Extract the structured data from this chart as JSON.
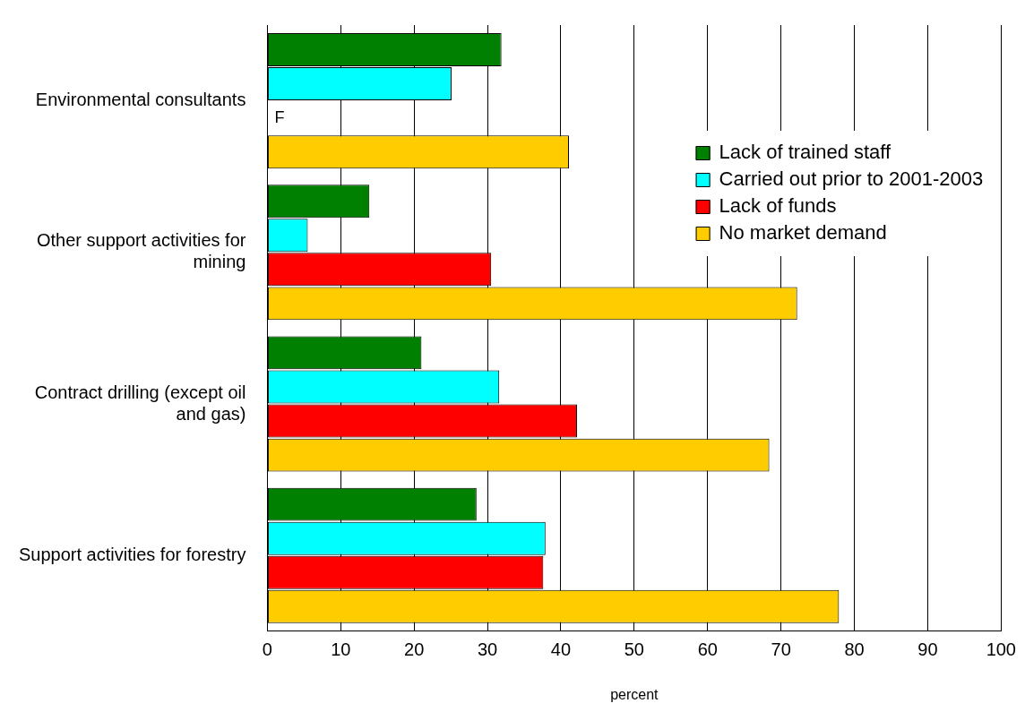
{
  "chart_data": {
    "type": "bar",
    "orientation": "horizontal",
    "xlabel": "percent",
    "categories": [
      "Environmental consultants",
      "Other support activities for mining",
      "Contract drilling (except oil and gas)",
      "Support activities for forestry"
    ],
    "series": [
      {
        "name": "Lack of trained staff",
        "color": "#008000",
        "values": [
          31.9,
          13.9,
          21.0,
          28.5
        ]
      },
      {
        "name": "Carried out prior to 2001-2003",
        "color": "#00ffff",
        "values": [
          25.1,
          5.5,
          31.6,
          37.9
        ]
      },
      {
        "name": "Lack of funds",
        "color": "#ff0000",
        "values": [
          null,
          30.5,
          42.2,
          37.6
        ]
      },
      {
        "name": "No market demand",
        "color": "#ffcc00",
        "values": [
          41.1,
          72.2,
          68.4,
          77.9
        ]
      }
    ],
    "annotations": [
      {
        "text": "F",
        "x": 0,
        "y": "Environmental consultants"
      }
    ],
    "xlim": [
      0,
      100
    ],
    "xticks": [
      0,
      10,
      20,
      30,
      40,
      50,
      60,
      70,
      80,
      90,
      100
    ],
    "grid": "x",
    "legend": "top right"
  }
}
